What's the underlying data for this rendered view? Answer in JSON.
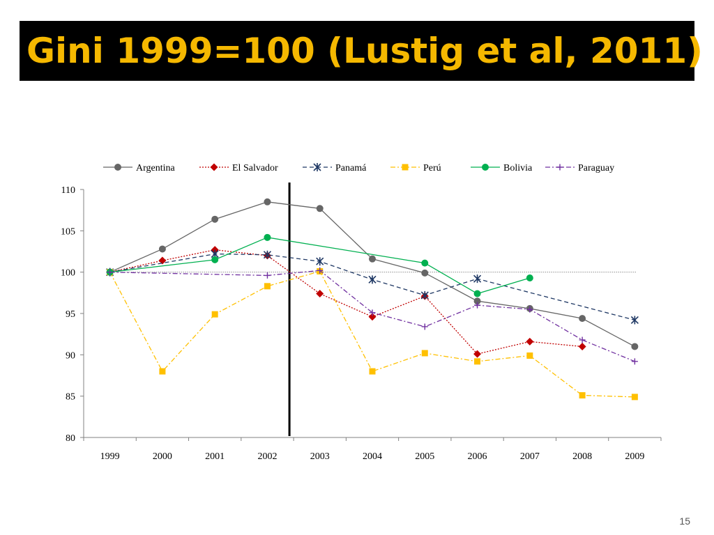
{
  "slide": {
    "title": "Gini 1999=100 (Lustig et al, 2011)",
    "page_number": "15"
  },
  "chart_data": {
    "type": "line",
    "title": "",
    "xlabel": "",
    "ylabel": "",
    "x": [
      "1999",
      "2000",
      "2001",
      "2002",
      "2003",
      "2004",
      "2005",
      "2006",
      "2007",
      "2008",
      "2009"
    ],
    "ylim": [
      80,
      110
    ],
    "yticks": [
      "80",
      "85",
      "90",
      "95",
      "100",
      "105",
      "110"
    ],
    "reference_line": 100,
    "vertical_marker_between": [
      "2002",
      "2003"
    ],
    "legend_position": "top",
    "grid": false,
    "series": [
      {
        "name": "Argentina",
        "color": "#666666",
        "dash": "solid",
        "marker": "circle",
        "values": [
          100,
          102.8,
          106.4,
          108.5,
          107.7,
          101.6,
          99.9,
          96.5,
          95.6,
          94.4,
          91.0
        ]
      },
      {
        "name": "El Salvador",
        "color": "#c00000",
        "dash": "dotted",
        "marker": "diamond",
        "values": [
          100,
          101.4,
          102.7,
          102.0,
          97.4,
          94.6,
          97.1,
          90.1,
          91.6,
          91.0,
          null
        ]
      },
      {
        "name": "Panamá",
        "color": "#1f3864",
        "dash": "dashed",
        "marker": "asterisk",
        "values": [
          100,
          null,
          102.2,
          102.1,
          101.3,
          99.1,
          97.2,
          99.2,
          null,
          null,
          94.2
        ]
      },
      {
        "name": "Perú",
        "color": "#ffc000",
        "dash": "dashdot",
        "marker": "square",
        "values": [
          100,
          88.0,
          94.9,
          98.3,
          100.1,
          88.0,
          90.2,
          89.2,
          89.9,
          85.1,
          84.9
        ]
      },
      {
        "name": "Bolivia",
        "color": "#00b050",
        "dash": "solid",
        "marker": "circle",
        "values": [
          100,
          null,
          101.5,
          104.2,
          null,
          null,
          101.1,
          97.4,
          99.3,
          null,
          null
        ]
      },
      {
        "name": "Paraguay",
        "color": "#7030a0",
        "dash": "dashdot",
        "marker": "plus",
        "values": [
          100,
          null,
          null,
          99.6,
          100.2,
          95.1,
          93.4,
          96.0,
          95.5,
          91.8,
          89.2
        ]
      }
    ]
  }
}
